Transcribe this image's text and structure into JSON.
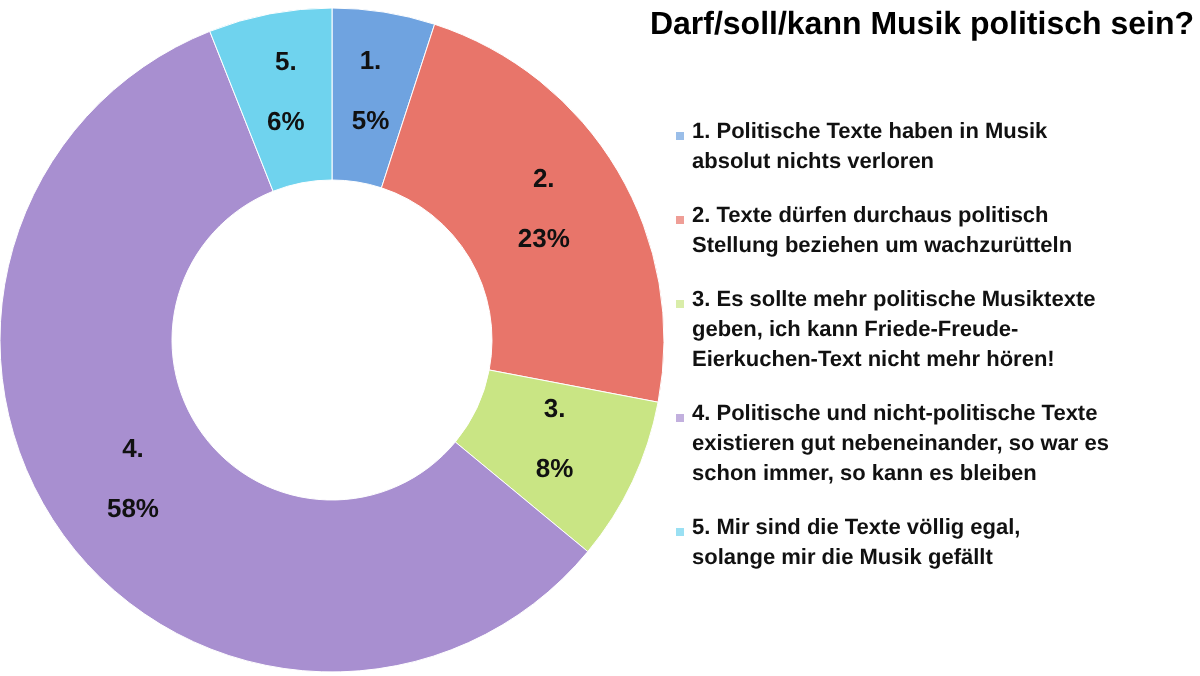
{
  "chart_data": {
    "type": "donut",
    "title": "Darf/soll/kann Musik politisch sein?",
    "categories": [
      "1. Politische Texte haben in Musik absolut nichts verloren",
      "2. Texte dürfen durchaus politisch Stellung beziehen um wachzurütteln",
      "3. Es sollte mehr politische Musiktexte geben, ich kann Friede-Freude-Eierkuchen-Text nicht mehr hören!",
      "4. Politische und nicht-politische Texte existieren gut nebeneinander, so war es schon immer, so kann es bleiben",
      "5. Mir sind die Texte völlig egal, solange mir die Musik gefällt"
    ],
    "values": [
      5,
      23,
      8,
      58,
      6
    ],
    "value_labels": [
      "5%",
      "23%",
      "8%",
      "58%",
      "6%"
    ],
    "colors": [
      "#6fa3e0",
      "#e8756a",
      "#c9e584",
      "#a88fd0",
      "#6fd3ee"
    ],
    "annotations": [
      {
        "text": "1.",
        "x": "1. Politische Texte haben in Musik absolut nichts verloren"
      },
      {
        "text": "2.",
        "x": "2. Texte dürfen durchaus politisch Stellung beziehen um wachzurütteln"
      },
      {
        "text": "3.",
        "x": "3. Es sollte mehr politische Musiktexte geben, ich kann Friede-Freude-Eierkuchen-Text nicht mehr hören!"
      },
      {
        "text": "4.",
        "x": "4. Politische und nicht-politische Texte existieren gut nebeneinander, so war es schon immer, so kann es bleiben"
      },
      {
        "text": "5.",
        "x": "5. Mir sind die Texte völlig egal, solange mir die Musik gefällt"
      }
    ],
    "legend": "right"
  }
}
